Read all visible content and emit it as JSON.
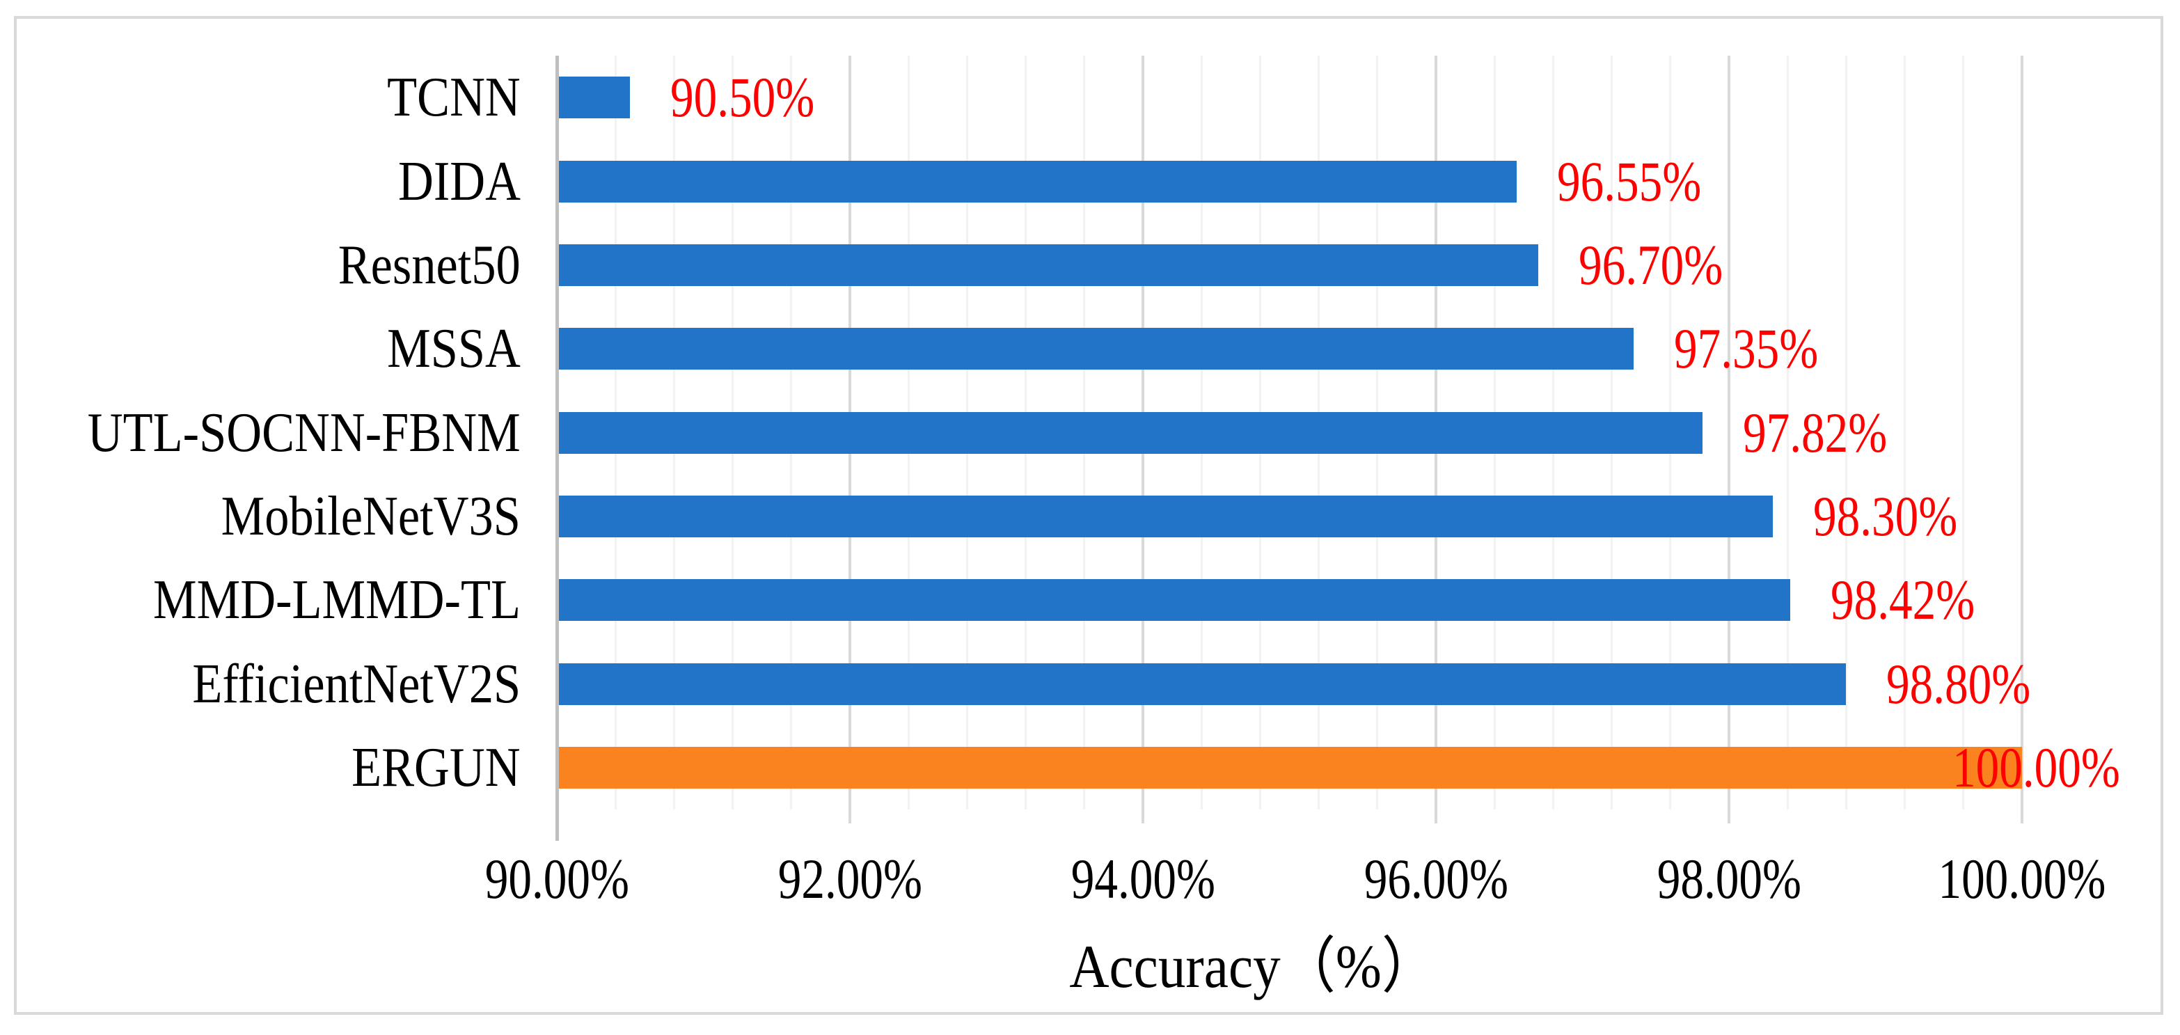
{
  "chart_data": {
    "type": "bar",
    "orientation": "horizontal",
    "categories": [
      "TCNN",
      "DIDA",
      "Resnet50",
      "MSSA",
      "UTL-SOCNN-FBNM",
      "MobileNetV3S",
      "MMD-LMMD-TL",
      "EfficientNetV2S",
      "ERGUN"
    ],
    "values": [
      90.5,
      96.55,
      96.7,
      97.35,
      97.82,
      98.3,
      98.42,
      98.8,
      100.0
    ],
    "value_labels": [
      "90.50%",
      "96.55%",
      "96.70%",
      "97.35%",
      "97.82%",
      "98.30%",
      "98.42%",
      "98.80%",
      "100.00%"
    ],
    "highlight_category": "ERGUN",
    "xlabel": "Accuracy（%）",
    "x_ticks": [
      "90.00%",
      "92.00%",
      "94.00%",
      "96.00%",
      "98.00%",
      "100.00%"
    ],
    "x_tick_values": [
      90,
      92,
      94,
      96,
      98,
      100
    ],
    "xlim": [
      90,
      100
    ],
    "major_grid_step": 2,
    "minor_grid_step": 0.4,
    "grid": "vertical",
    "legend": "none"
  },
  "colors": {
    "bar_default": "#2274C8",
    "bar_highlight": "#FA8320",
    "value_label": "#FF0000",
    "category_label": "#000000",
    "tick_label": "#000000",
    "axis_line": "#BFBFBF",
    "gridline_major": "#D9D9D9",
    "gridline_minor": "#F2F2F2",
    "frame_border": "#D9D9D9",
    "background": "#FFFFFF"
  }
}
